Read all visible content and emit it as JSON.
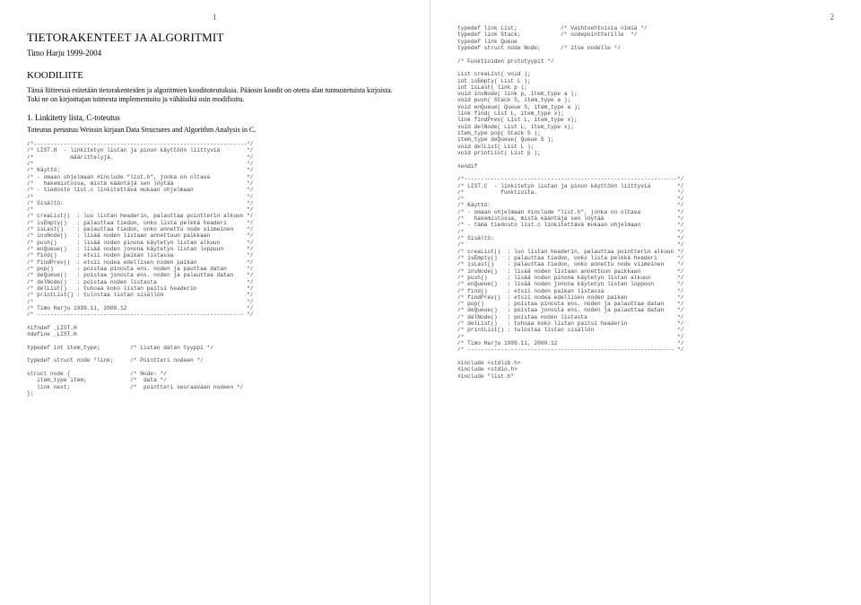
{
  "page1": {
    "num": "1",
    "title": "TIETORAKENTEET JA ALGORITMIT",
    "author": "Timo Harju 1999-2004",
    "h2": "KOODILIITE",
    "intro": "Tässä liitteessä esitetään tietorakenteiden ja algoritmien kooditoteutuksia. Pääosin koodit on otettu alan tunnustetuista kirjoista. Toki ne on kirjoittajan toimesta implementoitu ja vähäisiltä osin modifioitu.",
    "sect1": "1.   Linkitetty lista, C-toteutus",
    "sect1note": "Toteutus perustuu Weissin kirjaan Data Structures and Algorithm Analysis in C.",
    "code": "/*----------------------------------------------------------------*/\n/* LIST.H  - linkitetyn listan ja pinon käyttöön liittyviä        */\n/*           määrittelyjä.                                        */\n/*                                                                */\n/* Käyttö:                                                        */\n/* - omaan ohjelmaan #include \"list.h\", jonka on oltava           */\n/*   hakemistossa, mistä kääntäjä sen löytää                      */\n/* - tiedosto list.c linkitettävä mukaan ohjelmaan                */\n/*                                                                */\n/* Sisältö:                                                       */\n/*                                                                */\n/* creaList()  : luo listan headerin, palauttaa pointterin alkuun */\n/* isEmpty()   : palauttaa tiedon, onko lista pelkkä headeri      */\n/* isLast()    : palauttaa tiedon, onko annettu node viimeinen    */\n/* insNode()   : lisää noden listaan annettuun paikkaan           */\n/* push()      : lisää noden pinona käytetyn listan alkuun        */\n/* enQueue()   : lisää noden jonona käytetyn listan loppuun       */\n/* find()      : etsii noden paikan listassa                      */\n/* findPrev()  : etsii nodea edellisen noden paikan               */\n/* pop()       : poistaa pinosta ens. noden ja pauttaa datan      */\n/* deQueue()   : poistaa jonosta ens. noden ja palauttaa datan    */\n/* delNode()   : poistaa noden listasta                           */\n/* delList()   : tuhoaa koko listan paitsi headerin               */\n/* printList() : tulostaa listan sisällön                         */\n/*                                                                */\n/* Timo Harju 1999.11, 2000.12                                    */\n/* -------------------------------------------------------------- */\n\n#ifndef _LIST.H\n#define _LIST.H\n\ntypedef int item_type;         /* Listan datan tyyppi */\n\ntypedef struct node *link;     /* Pointteri nodeen */\n\nstruct node {                  /* Node: */\n   item_type item;             /*  data */\n   link next;                  /*  pointteri seuraavaan nodeen */\n};"
  },
  "page2": {
    "num": "2",
    "code": "typedef link List;             /* Vaihtoehtoisia nimiä */\ntypedef link Stack;            /* nodepointterille  */\ntypedef link Queue\ntypedef struct node Node;      /* itse nodelle */\n\n/* Funktioiden prototyypit */\n\nList creaList( void );\nint isEmpty( List L );\nint isLast( link p );\nvoid insNode( link p, item_type a );\nvoid push( Stack S, item_type a );\nvoid enQueue( Queue S, item_type a );\nlink find( List L, item_type x);\nlink findPrev( List L, item_type x);\nvoid delNode( List L, item_type x);\nitem_type pop( Stack S );\nitem_type deQueue( Queue S );\nvoid delList( List L );\nvoid printList( List p );\n\n#endif\n\n/*----------------------------------------------------------------*/\n/* LIST.C  - linkitetyn listan ja pinon käyttöön liittyviä        */\n/*           funktioita.                                          */\n/*                                                                */\n/* Käyttö:                                                        */\n/* - omaan ohjelmaan #include \"list.h\", jonka on oltava           */\n/*   hakemistossa, mistä kääntäjä sen löytää                      */\n/* - tämä tiedosto list.c linkitettävä mukaan ohjelmaan           */\n/*                                                                */\n/* Sisältö:                                                       */\n/*                                                                */\n/* creaList()  : luo listan headerin, palauttaa pointterin alkuun */\n/* isEmpty()   : palauttaa tiedon, onko lista pelkkä headeri      */\n/* isLast()    : palauttaa tiedon, onko annettu node viimeinen    */\n/* insNode()   : lisää noden listaan annettuun paikkaan           */\n/* push()      : lisää noden pinona käytetyn listan alkuun        */\n/* enQueue()   : lisää noden jonona käytetyn listan loppuun       */\n/* find()      : etsii noden paikan listassa                      */\n/* findPrev()  : etsii nodea edellisen noden paikan               */\n/* pop()       : poistaa pinosta ens. noden ja palauttaa datan    */\n/* deQueue()   : poistaa jonosta ens. noden ja palauttaa datan    */\n/* delNode()   : poistaa noden listasta                           */\n/* delList()   : tuhoaa koko listan paitsi headerin               */\n/* printList() : tulostaa listan sisällön                         */\n/*                                                                */\n/* Timo Harju 1999.11, 2000.12                                    */\n/* -------------------------------------------------------------- */\n\n#include <stdlib.h>\n#include <stdio.h>\n#include \"list.h\""
  }
}
